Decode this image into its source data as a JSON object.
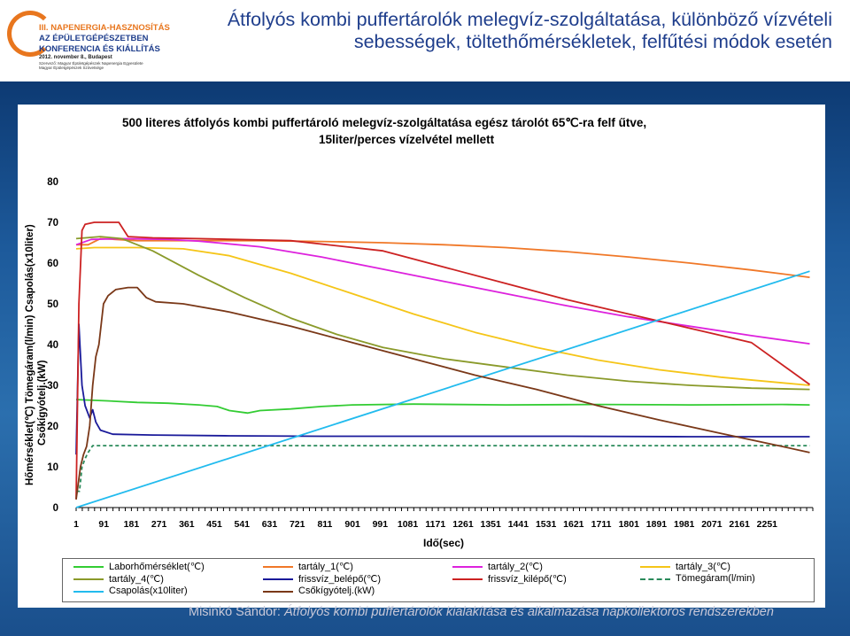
{
  "header": {
    "logo": {
      "line1": "III. NAPENERGIA-HASZNOSÍTÁS",
      "line2": "AZ ÉPÜLETGÉPÉSZETBEN",
      "line3": "KONFERENCIA ÉS KIÁLLÍTÁS",
      "line4": "2012. november 8., Budapest",
      "line5": "Szervező: Magyar Épületgépészek Napenergia Egyesülete",
      "line6": "Magyar Épületgépészek Szövetsége"
    },
    "title_line1": "Átfolyós kombi puffertárolók melegvíz-szolgáltatása, különböző vízvételi",
    "title_line2": "sebességek, töltethőmérsékletek, felfűtési módok esetén"
  },
  "footer": {
    "author": "Misinkó Sándor:",
    "text": "Átfolyós kombi puffertárolók kialakítása és alkalmazása napkollektoros rendszerekben"
  },
  "chart_data": {
    "type": "line",
    "title_line1": "500 literes átfolyós kombi puffertároló melegvíz-szolgáltatása egész tárolót 65℃-ra felf űtve,",
    "title_line2": "15liter/perces vízelvétel mellett",
    "ylabel_line1": "Hőmérséklet(℃) Tömegáram(l/min) Csapolás(x10liter)",
    "ylabel_line2": "Csőkígyótelj.(kW)",
    "xlabel": "Idő(sec)",
    "ylim": [
      0,
      80
    ],
    "yticks": [
      0,
      10,
      20,
      30,
      40,
      50,
      60,
      70,
      80
    ],
    "xlim": [
      1,
      2400
    ],
    "xticks": [
      "1",
      "91",
      "181",
      "271",
      "361",
      "451",
      "541",
      "631",
      "721",
      "811",
      "901",
      "991",
      "1081",
      "1171",
      "1261",
      "1351",
      "1441",
      "1531",
      "1621",
      "1711",
      "1801",
      "1891",
      "1981",
      "2071",
      "2161",
      "2251"
    ],
    "grid": false,
    "legend_position": "bottom",
    "series": [
      {
        "name": "Laborhőmérséklet(℃)",
        "color": "#33cc33",
        "style": "solid",
        "points": [
          [
            1,
            26.5
          ],
          [
            100,
            26.2
          ],
          [
            200,
            25.8
          ],
          [
            300,
            25.6
          ],
          [
            400,
            25.2
          ],
          [
            460,
            24.8
          ],
          [
            500,
            23.8
          ],
          [
            560,
            23.2
          ],
          [
            600,
            23.8
          ],
          [
            700,
            24.2
          ],
          [
            800,
            24.8
          ],
          [
            900,
            25.2
          ],
          [
            1100,
            25.4
          ],
          [
            1400,
            25.2
          ],
          [
            1700,
            25.3
          ],
          [
            2000,
            25.2
          ],
          [
            2300,
            25.3
          ],
          [
            2390,
            25.2
          ]
        ]
      },
      {
        "name": "tartály_1(℃)",
        "color": "#f07828",
        "style": "solid",
        "points": [
          [
            1,
            64.5
          ],
          [
            40,
            64.5
          ],
          [
            80,
            66
          ],
          [
            130,
            65.8
          ],
          [
            200,
            65.5
          ],
          [
            400,
            65.5
          ],
          [
            600,
            65.5
          ],
          [
            800,
            65.3
          ],
          [
            1000,
            65
          ],
          [
            1200,
            64.5
          ],
          [
            1400,
            63.8
          ],
          [
            1600,
            62.8
          ],
          [
            1800,
            61.5
          ],
          [
            2000,
            60
          ],
          [
            2200,
            58.3
          ],
          [
            2390,
            56.5
          ]
        ]
      },
      {
        "name": "tartály_2(℃)",
        "color": "#dd22dd",
        "style": "solid",
        "points": [
          [
            1,
            64.5
          ],
          [
            50,
            65.8
          ],
          [
            150,
            66
          ],
          [
            300,
            65.8
          ],
          [
            400,
            65.4
          ],
          [
            600,
            64
          ],
          [
            800,
            61.5
          ],
          [
            1000,
            58.5
          ],
          [
            1200,
            55.5
          ],
          [
            1400,
            52.5
          ],
          [
            1600,
            49.5
          ],
          [
            1800,
            46.8
          ],
          [
            2000,
            44.5
          ],
          [
            2200,
            42.2
          ],
          [
            2390,
            40.2
          ]
        ]
      },
      {
        "name": "tartály_3(℃)",
        "color": "#f5c518",
        "style": "solid",
        "points": [
          [
            1,
            63.5
          ],
          [
            60,
            63.8
          ],
          [
            200,
            63.8
          ],
          [
            350,
            63.5
          ],
          [
            500,
            61.8
          ],
          [
            700,
            57.5
          ],
          [
            900,
            52.5
          ],
          [
            1100,
            47.5
          ],
          [
            1300,
            43
          ],
          [
            1500,
            39.3
          ],
          [
            1700,
            36.2
          ],
          [
            1900,
            33.8
          ],
          [
            2100,
            32
          ],
          [
            2300,
            30.6
          ],
          [
            2390,
            30
          ]
        ]
      },
      {
        "name": "tartály_4(℃)",
        "color": "#8a9a2a",
        "style": "solid",
        "points": [
          [
            1,
            66
          ],
          [
            80,
            66.5
          ],
          [
            150,
            66
          ],
          [
            250,
            63
          ],
          [
            400,
            57
          ],
          [
            550,
            51.5
          ],
          [
            700,
            46.5
          ],
          [
            850,
            42.5
          ],
          [
            1000,
            39.3
          ],
          [
            1200,
            36.5
          ],
          [
            1400,
            34.5
          ],
          [
            1600,
            32.5
          ],
          [
            1800,
            31
          ],
          [
            2000,
            30
          ],
          [
            2200,
            29.3
          ],
          [
            2390,
            29
          ]
        ]
      },
      {
        "name": "frissvíz_belépő(℃)",
        "color": "#1a1a9a",
        "style": "solid",
        "points": [
          [
            1,
            13
          ],
          [
            10,
            45
          ],
          [
            20,
            30
          ],
          [
            30,
            25
          ],
          [
            45,
            22
          ],
          [
            55,
            24
          ],
          [
            65,
            21
          ],
          [
            80,
            19
          ],
          [
            120,
            18
          ],
          [
            250,
            17.8
          ],
          [
            500,
            17.6
          ],
          [
            800,
            17.5
          ],
          [
            1200,
            17.5
          ],
          [
            1600,
            17.5
          ],
          [
            2000,
            17.4
          ],
          [
            2390,
            17.4
          ]
        ]
      },
      {
        "name": "frissvíz_kilépő(℃)",
        "color": "#cc2222",
        "style": "solid",
        "points": [
          [
            1,
            2
          ],
          [
            10,
            50
          ],
          [
            20,
            68
          ],
          [
            30,
            69.5
          ],
          [
            60,
            70
          ],
          [
            140,
            70
          ],
          [
            170,
            66.5
          ],
          [
            250,
            66.2
          ],
          [
            400,
            66
          ],
          [
            700,
            65.5
          ],
          [
            1000,
            63
          ],
          [
            1200,
            59
          ],
          [
            1400,
            55
          ],
          [
            1600,
            51
          ],
          [
            1800,
            47.5
          ],
          [
            2000,
            44
          ],
          [
            2200,
            40.5
          ],
          [
            2390,
            30.2
          ]
        ]
      },
      {
        "name": "Tömegáram(l/min)",
        "color": "#2a8a5a",
        "style": "dash",
        "points": [
          [
            1,
            4
          ],
          [
            12,
            4
          ],
          [
            20,
            10
          ],
          [
            30,
            12
          ],
          [
            40,
            13.5
          ],
          [
            55,
            15.2
          ],
          [
            2390,
            15.2
          ]
        ]
      },
      {
        "name": "Csapolás(x10liter)",
        "color": "#22bbee",
        "style": "solid",
        "points": [
          [
            1,
            0
          ],
          [
            2390,
            58
          ]
        ]
      },
      {
        "name": "Csőkígyótelj.(kW)",
        "color": "#7a3818",
        "style": "solid",
        "points": [
          [
            1,
            2
          ],
          [
            15,
            10
          ],
          [
            25,
            13
          ],
          [
            35,
            15
          ],
          [
            45,
            20
          ],
          [
            55,
            30
          ],
          [
            65,
            37
          ],
          [
            75,
            40
          ],
          [
            90,
            50
          ],
          [
            105,
            52
          ],
          [
            130,
            53.5
          ],
          [
            170,
            54
          ],
          [
            200,
            54
          ],
          [
            230,
            51.5
          ],
          [
            260,
            50.5
          ],
          [
            350,
            50
          ],
          [
            500,
            48
          ],
          [
            700,
            44.5
          ],
          [
            900,
            40.5
          ],
          [
            1100,
            36.5
          ],
          [
            1300,
            32.5
          ],
          [
            1500,
            29
          ],
          [
            1700,
            25
          ],
          [
            1900,
            21.5
          ],
          [
            2100,
            18.2
          ],
          [
            2300,
            15
          ],
          [
            2390,
            13.5
          ]
        ]
      }
    ]
  }
}
